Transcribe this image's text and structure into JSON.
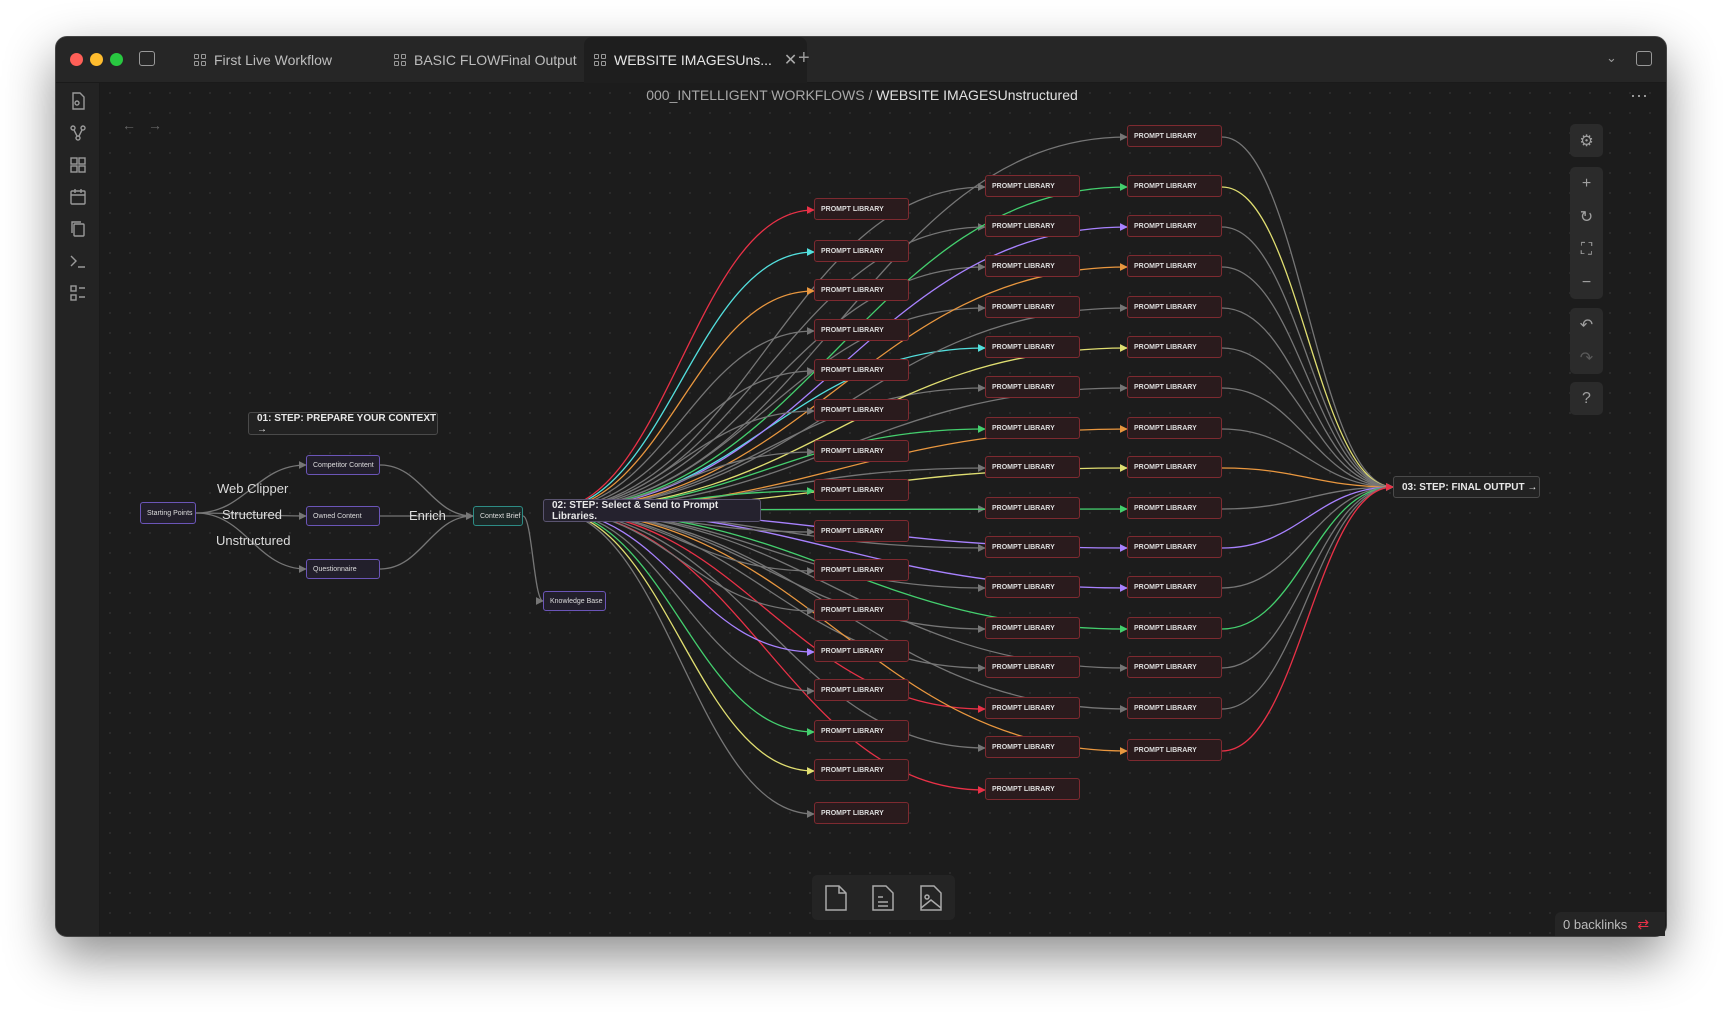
{
  "tabs": [
    {
      "label": "First Live Workflow"
    },
    {
      "label": "BASIC FLOWFinal Output"
    },
    {
      "label": "WEBSITE IMAGESUns...",
      "active": true
    }
  ],
  "breadcrumb": {
    "parent": "000_INTELLIGENT WORKFLOWS",
    "separator": "/",
    "current": "WEBSITE IMAGESUnstructured"
  },
  "backlinks": "0 backlinks",
  "colors": {
    "red": "#e93147",
    "purple": "#a882ff",
    "cyan": "#53dfdd",
    "orange": "#e9973f",
    "green": "#44cf6e",
    "yellow": "#e0de71",
    "gray": "#767676"
  },
  "canvas": {
    "step01": "01: STEP: PREPARE YOUR CONTEXT →",
    "step02": "02: STEP: Select & Send to Prompt Libraries.",
    "step03": "03: STEP: FINAL OUTPUT →",
    "starting_points": "Starting Points",
    "competitor": "Competitor Content",
    "owned": "Owned Content",
    "questionnaire": "Questionnaire",
    "context_brief": "Context Brief",
    "knowledge_base": "Knowledge Base",
    "edge_labels": {
      "web_clipper": "Web Clipper",
      "structured": "Structured",
      "unstructured": "Unstructured",
      "enrich": "Enrich"
    },
    "prompt_label": "PROMPT LIBRARY",
    "col1_colors": [
      "red",
      "cyan",
      "orange",
      "gray",
      "gray",
      "gray",
      "gray",
      "green",
      "gray",
      "gray",
      "gray",
      "purple",
      "gray",
      "green",
      "yellow",
      "gray"
    ],
    "col2_colors": [
      "gray",
      "gray",
      "gray",
      "gray",
      "cyan",
      "gray",
      "green",
      "gray",
      "gray",
      "gray",
      "gray",
      "gray",
      "gray",
      "red",
      "gray",
      "red"
    ],
    "col3_colors": [
      "gray",
      "green",
      "purple",
      "orange",
      "gray",
      "yellow",
      "gray",
      "orange",
      "yellow",
      "green",
      "purple",
      "purple",
      "green",
      "gray",
      "gray",
      "orange"
    ],
    "col3_to_final": [
      "gray",
      "yellow",
      "gray",
      "gray",
      "gray",
      "gray",
      "gray",
      "gray",
      "orange",
      "gray",
      "purple",
      "gray",
      "green",
      "gray",
      "gray",
      "red"
    ]
  }
}
